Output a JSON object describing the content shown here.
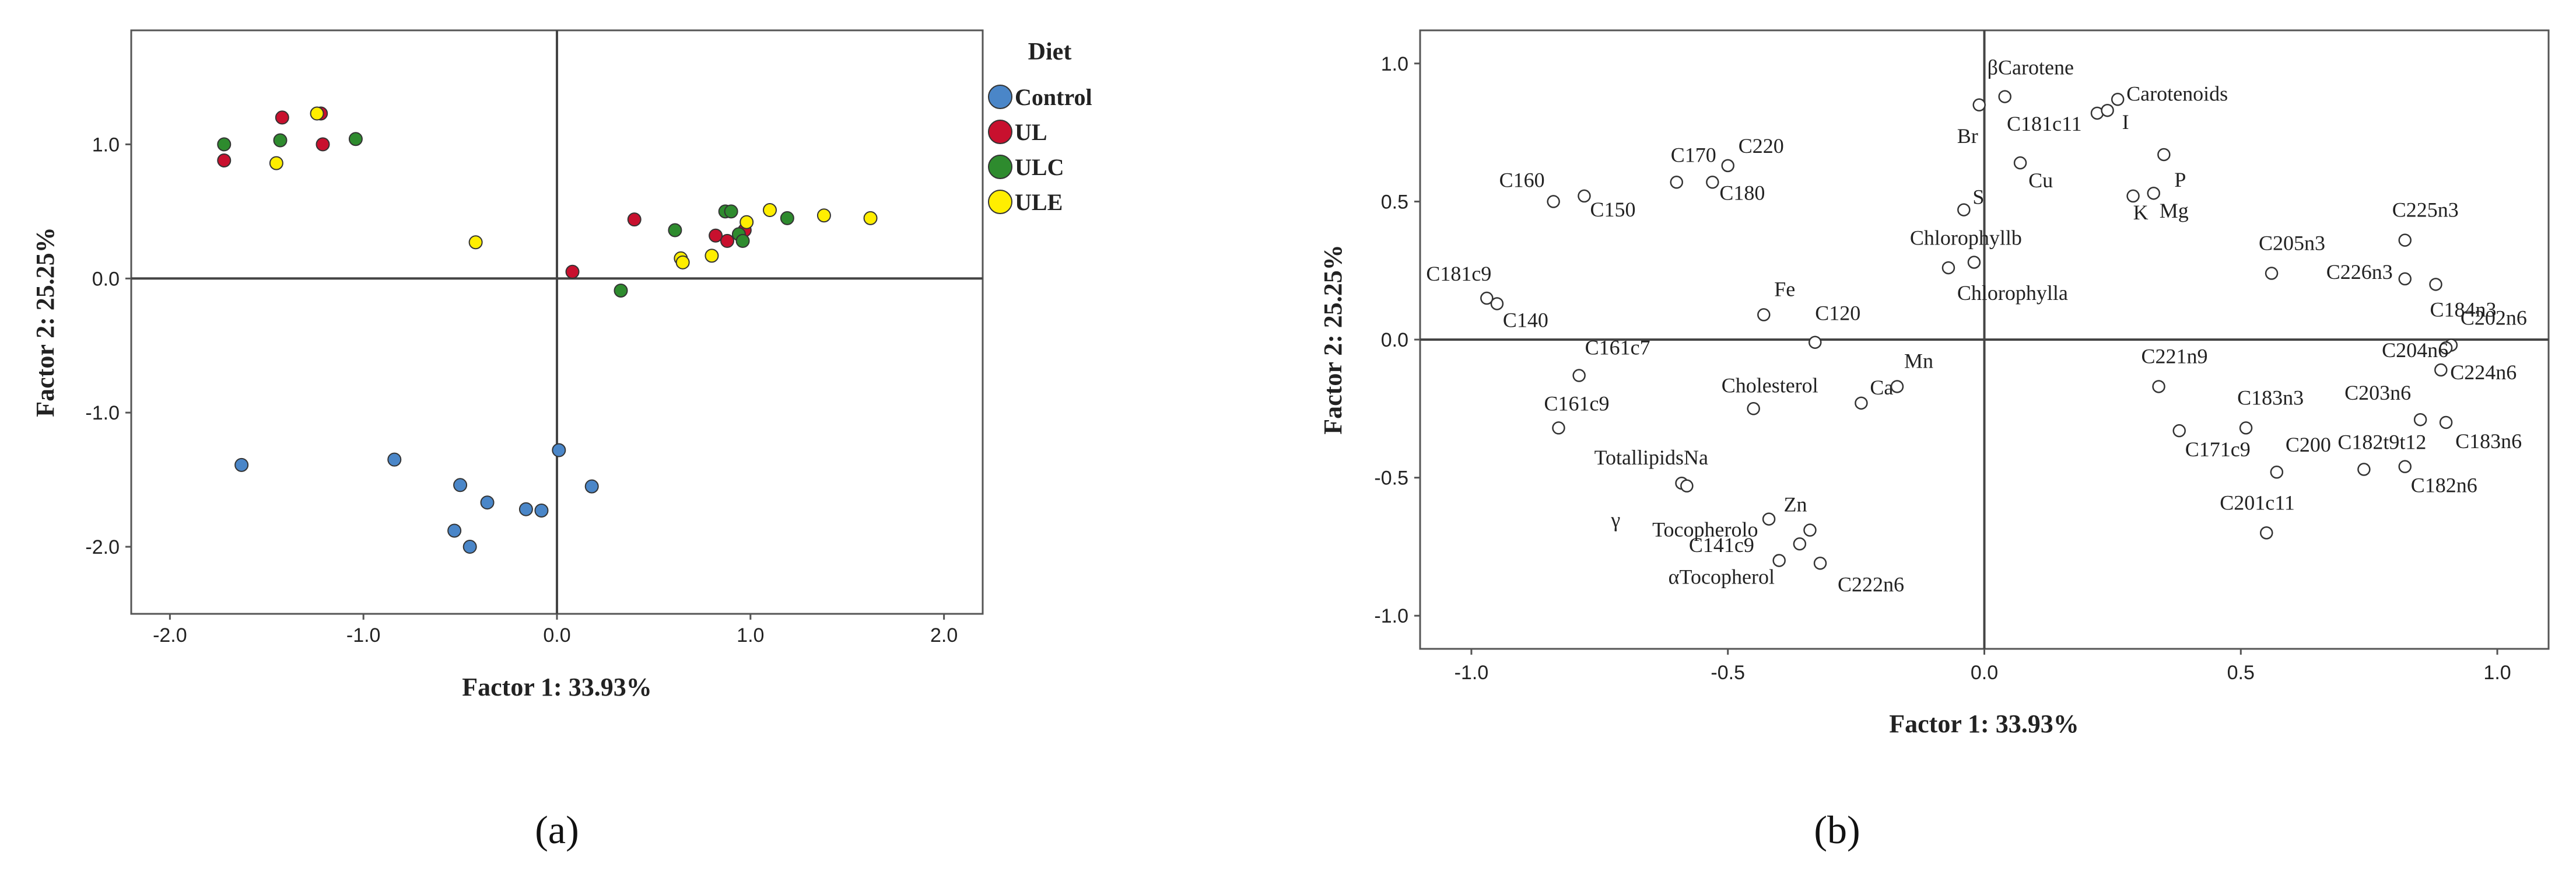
{
  "chart_data": [
    {
      "type": "scatter",
      "panel_label": "(a)",
      "title": "",
      "xlabel": "Factor 1: 33.93%",
      "ylabel": "Factor 2: 25.25%",
      "xlim": [
        -2.2,
        2.2
      ],
      "ylim": [
        -2.5,
        1.85
      ],
      "xticks": [
        -2.0,
        -1.0,
        0.0,
        1.0,
        2.0
      ],
      "xtick_labels": [
        "-2.0",
        "-1.0",
        "0.0",
        "1.0",
        "2.0"
      ],
      "yticks": [
        -2.0,
        -1.0,
        0.0,
        1.0
      ],
      "ytick_labels": [
        "-2.0",
        "-1.0",
        "0.0",
        "1.0"
      ],
      "grid": false,
      "legend": {
        "title": "Diet",
        "position": "top-right"
      },
      "series": [
        {
          "name": "Control",
          "color": "#4a86c8",
          "x": [
            -1.63,
            -0.84,
            -0.5,
            -0.36,
            -0.16,
            -0.08,
            0.01,
            0.18,
            -0.53,
            -0.45
          ],
          "y": [
            -1.39,
            -1.35,
            -1.54,
            -1.67,
            -1.72,
            -1.73,
            -1.28,
            -1.55,
            -1.88,
            -2.0
          ]
        },
        {
          "name": "UL",
          "color": "#c8102e",
          "x": [
            -1.72,
            -1.42,
            -1.22,
            -1.21,
            0.08,
            0.4,
            0.82,
            0.88,
            0.97
          ],
          "y": [
            0.88,
            1.2,
            1.23,
            1.0,
            0.05,
            0.44,
            0.32,
            0.28,
            0.36
          ]
        },
        {
          "name": "ULC",
          "color": "#2e8b2e",
          "x": [
            -1.72,
            -1.43,
            -1.04,
            0.33,
            0.61,
            0.87,
            0.9,
            0.94,
            0.96,
            1.19
          ],
          "y": [
            1.0,
            1.03,
            1.04,
            -0.09,
            0.36,
            0.5,
            0.5,
            0.33,
            0.28,
            0.45
          ]
        },
        {
          "name": "ULE",
          "color": "#ffee00",
          "x": [
            -1.45,
            -1.24,
            -0.42,
            0.64,
            0.65,
            0.8,
            0.98,
            1.1,
            1.38,
            1.62
          ],
          "y": [
            0.86,
            1.23,
            0.27,
            0.15,
            0.12,
            0.17,
            0.42,
            0.51,
            0.47,
            0.45
          ]
        }
      ]
    },
    {
      "type": "scatter",
      "panel_label": "(b)",
      "title": "",
      "xlabel": "Factor 1: 33.93%",
      "ylabel": "Factor 2: 25.25%",
      "xlim": [
        -1.1,
        1.1
      ],
      "ylim": [
        -1.12,
        1.12
      ],
      "xticks": [
        -1.0,
        -0.5,
        0.0,
        0.5,
        1.0
      ],
      "xtick_labels": [
        "-1.0",
        "-0.5",
        "0.0",
        "0.5",
        "1.0"
      ],
      "yticks": [
        -1.0,
        -0.5,
        0.0,
        0.5,
        1.0
      ],
      "ytick_labels": [
        "-1.0",
        "-0.5",
        "0.0",
        "0.5",
        "1.0"
      ],
      "grid": false,
      "points": [
        {
          "label": "C160",
          "x": -0.84,
          "y": 0.5
        },
        {
          "label": "C150",
          "x": -0.78,
          "y": 0.52
        },
        {
          "label": "C170",
          "x": -0.6,
          "y": 0.57
        },
        {
          "label": "C180",
          "x": -0.53,
          "y": 0.57
        },
        {
          "label": "C220",
          "x": -0.5,
          "y": 0.63
        },
        {
          "label": "C181c9",
          "x": -0.97,
          "y": 0.15
        },
        {
          "label": "C140",
          "x": -0.95,
          "y": 0.13
        },
        {
          "label": "C161c7",
          "x": -0.79,
          "y": -0.13
        },
        {
          "label": "C161c9",
          "x": -0.83,
          "y": -0.32
        },
        {
          "label": "Fe",
          "x": -0.43,
          "y": 0.09
        },
        {
          "label": "C120",
          "x": -0.33,
          "y": -0.01
        },
        {
          "label": "Cholesterol",
          "x": -0.45,
          "y": -0.25
        },
        {
          "label": "Ca",
          "x": -0.24,
          "y": -0.23
        },
        {
          "label": "Mn",
          "x": -0.17,
          "y": -0.17
        },
        {
          "label": "TotallipidsNa",
          "x": -0.59,
          "y": -0.52
        },
        {
          "label": "γ",
          "x": -0.58,
          "y": -0.53
        },
        {
          "label": "Tocopherolo",
          "x": -0.42,
          "y": -0.65
        },
        {
          "label": "Zn",
          "x": -0.34,
          "y": -0.69
        },
        {
          "label": "C141c9",
          "x": -0.36,
          "y": -0.74
        },
        {
          "label": "αTocopherol",
          "x": -0.4,
          "y": -0.8
        },
        {
          "label": "C222n6",
          "x": -0.32,
          "y": -0.81
        },
        {
          "label": "βCarotene",
          "x": 0.04,
          "y": 0.88
        },
        {
          "label": "Br",
          "x": -0.01,
          "y": 0.85
        },
        {
          "label": "C181c11",
          "x": 0.22,
          "y": 0.82
        },
        {
          "label": "I",
          "x": 0.24,
          "y": 0.83
        },
        {
          "label": "Carotenoids",
          "x": 0.26,
          "y": 0.87
        },
        {
          "label": "Cu",
          "x": 0.07,
          "y": 0.64
        },
        {
          "label": "P",
          "x": 0.35,
          "y": 0.67
        },
        {
          "label": "K",
          "x": 0.29,
          "y": 0.52
        },
        {
          "label": "Mg",
          "x": 0.33,
          "y": 0.53
        },
        {
          "label": "S",
          "x": -0.04,
          "y": 0.47
        },
        {
          "label": "Chlorophyllb",
          "x": -0.02,
          "y": 0.28
        },
        {
          "label": "Chlorophylla",
          "x": -0.07,
          "y": 0.26
        },
        {
          "label": "C205n3",
          "x": 0.56,
          "y": 0.24
        },
        {
          "label": "C225n3",
          "x": 0.82,
          "y": 0.36
        },
        {
          "label": "C226n3",
          "x": 0.82,
          "y": 0.22
        },
        {
          "label": "C184n3",
          "x": 0.88,
          "y": 0.2
        },
        {
          "label": "C202n6",
          "x": 0.91,
          "y": -0.02
        },
        {
          "label": "C204n6",
          "x": 0.9,
          "y": -0.03
        },
        {
          "label": "C224n6",
          "x": 0.89,
          "y": -0.11
        },
        {
          "label": "C221n9",
          "x": 0.34,
          "y": -0.17
        },
        {
          "label": "C183n3",
          "x": 0.51,
          "y": -0.32
        },
        {
          "label": "C171c9",
          "x": 0.38,
          "y": -0.33
        },
        {
          "label": "C200",
          "x": 0.57,
          "y": -0.48
        },
        {
          "label": "C203n6",
          "x": 0.85,
          "y": -0.29
        },
        {
          "label": "C183n6",
          "x": 0.9,
          "y": -0.3
        },
        {
          "label": "C182t9t12",
          "x": 0.74,
          "y": -0.47
        },
        {
          "label": "C182n6",
          "x": 0.82,
          "y": -0.46
        },
        {
          "label": "C201c11",
          "x": 0.55,
          "y": -0.7
        }
      ]
    }
  ]
}
